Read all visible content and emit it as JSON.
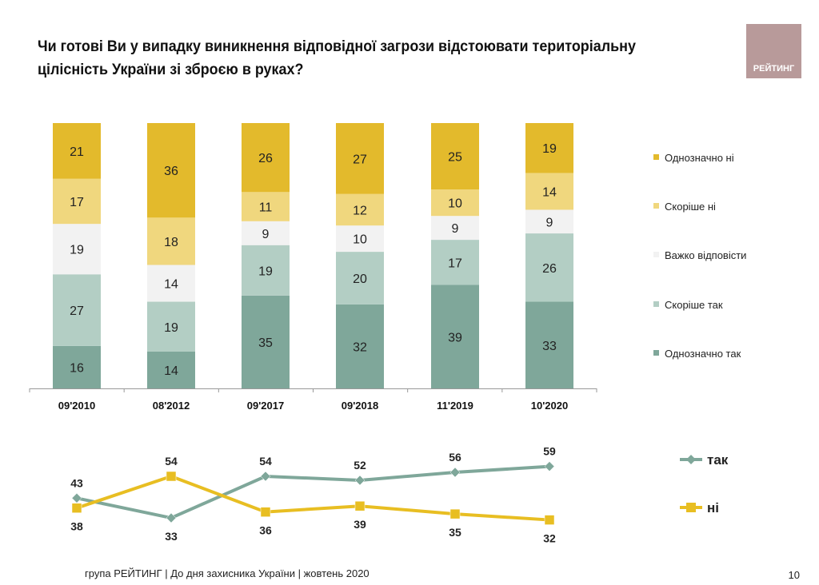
{
  "title": "Чи готові Ви у випадку виникнення відповідної загрози відстоювати територіальну цілісність України зі зброєю в руках?",
  "logo_text": "РЕЙТИНГ",
  "footer": "група РЕЙТИНГ  | До дня захисника України | жовтень 2020",
  "page_number": "10",
  "chart_data": [
    {
      "type": "bar",
      "stacked": true,
      "categories": [
        "09'2010",
        "08'2012",
        "09'2017",
        "09'2018",
        "11'2019",
        "10'2020"
      ],
      "legend_position": "right",
      "series": [
        {
          "name": "Однозначно так",
          "color": "#7FA79A",
          "values": [
            16,
            14,
            35,
            32,
            39,
            33
          ]
        },
        {
          "name": "Скоріше так",
          "color": "#B3CEC4",
          "values": [
            27,
            19,
            19,
            20,
            17,
            26
          ]
        },
        {
          "name": "Важко відповісти",
          "color": "#F2F2F2",
          "values": [
            19,
            14,
            9,
            10,
            9,
            9
          ]
        },
        {
          "name": "Скоріше ні",
          "color": "#F0D77E",
          "values": [
            17,
            18,
            11,
            12,
            10,
            14
          ]
        },
        {
          "name": "Однозначно ні",
          "color": "#E3BA2C",
          "values": [
            21,
            36,
            26,
            27,
            25,
            19
          ]
        }
      ]
    },
    {
      "type": "line",
      "categories": [
        "09'2010",
        "08'2012",
        "09'2017",
        "09'2018",
        "11'2019",
        "10'2020"
      ],
      "legend_position": "right",
      "series": [
        {
          "name": "так",
          "color": "#7FA79A",
          "marker": "diamond",
          "values": [
            43,
            33,
            54,
            52,
            56,
            59
          ]
        },
        {
          "name": "ні",
          "color": "#E8BE22",
          "marker": "square",
          "values": [
            38,
            54,
            36,
            39,
            35,
            32
          ]
        }
      ]
    }
  ]
}
